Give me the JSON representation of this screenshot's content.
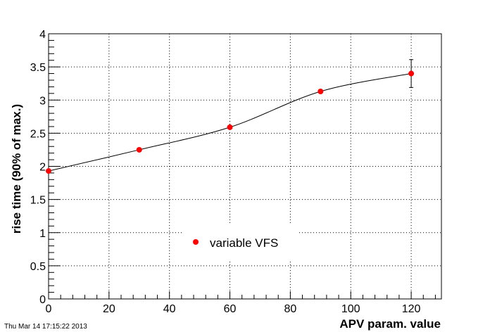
{
  "chart_data": {
    "type": "scatter",
    "title": "",
    "xlabel": "APV param. value",
    "ylabel": "rise time (90% of max.)",
    "xlim": [
      0,
      130
    ],
    "ylim": [
      0,
      4
    ],
    "x_ticks": [
      0,
      20,
      40,
      60,
      80,
      100,
      120
    ],
    "y_ticks": [
      0,
      0.5,
      1,
      1.5,
      2,
      2.5,
      3,
      3.5,
      4
    ],
    "x_tick_labels": [
      "0",
      "20",
      "40",
      "60",
      "80",
      "100",
      "120"
    ],
    "y_tick_labels": [
      "0",
      "0.5",
      "1",
      "1.5",
      "2",
      "2.5",
      "3",
      "3.5",
      "4"
    ],
    "grid": true,
    "legend_position": "bottom-center",
    "series": [
      {
        "name": "variable VFS",
        "color": "#ff0000",
        "marker": "circle",
        "x": [
          0,
          30,
          60,
          90,
          120
        ],
        "y": [
          1.93,
          2.25,
          2.59,
          3.13,
          3.4
        ],
        "y_err": [
          0,
          0,
          0,
          0,
          0.21
        ],
        "curve": "smooth"
      }
    ]
  },
  "timestamp": "Thu Mar 14 17:15:22 2013"
}
